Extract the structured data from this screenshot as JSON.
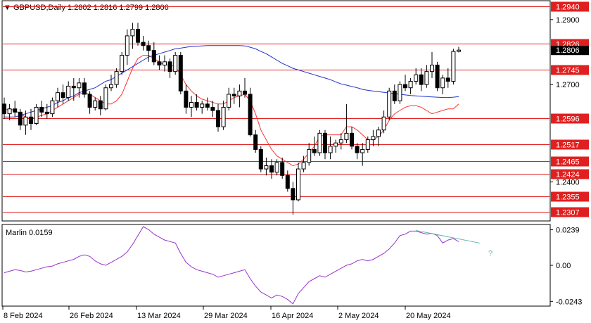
{
  "header": {
    "symbol_line": "GBPUSD,Daily  1.2802 1.2816 1.2799 1.2806",
    "marker": "▼"
  },
  "chart_data": [
    {
      "type": "candlestick",
      "symbol": "GBPUSD",
      "timeframe": "Daily",
      "ohlc_last": {
        "open": 1.2802,
        "high": 1.2816,
        "low": 1.2799,
        "close": 1.2806
      },
      "current_price_label": "1.2806",
      "y_ticks": [
        "1.2900",
        "1.2700",
        "1.2400"
      ],
      "x_ticks": [
        "8 Feb 2024",
        "26 Feb 2024",
        "13 Mar 2024",
        "29 Mar 2024",
        "16 Apr 2024",
        "2 May 2024",
        "20 May 2024"
      ],
      "horizontal_levels": [
        1.294,
        1.2826,
        1.2745,
        1.2596,
        1.2517,
        1.2465,
        1.2424,
        1.2355,
        1.2307
      ],
      "level_labels": [
        "1.2940",
        "1.2826",
        "1.2745",
        "1.2596",
        "1.2517",
        "1.2465",
        "1.2424",
        "1.2355",
        "1.2307"
      ],
      "candles": [
        [
          1.264,
          1.266,
          1.2595,
          1.261
        ],
        [
          1.261,
          1.264,
          1.259,
          1.2625
        ],
        [
          1.2625,
          1.265,
          1.26,
          1.2615
        ],
        [
          1.2615,
          1.2625,
          1.256,
          1.2575
        ],
        [
          1.2575,
          1.262,
          1.2545,
          1.26
        ],
        [
          1.26,
          1.2625,
          1.256,
          1.258
        ],
        [
          1.258,
          1.264,
          1.2575,
          1.263
        ],
        [
          1.263,
          1.265,
          1.26,
          1.2615
        ],
        [
          1.2615,
          1.264,
          1.2595,
          1.261
        ],
        [
          1.261,
          1.266,
          1.26,
          1.265
        ],
        [
          1.265,
          1.269,
          1.263,
          1.2675
        ],
        [
          1.2675,
          1.27,
          1.264,
          1.266
        ],
        [
          1.266,
          1.271,
          1.265,
          1.2695
        ],
        [
          1.2695,
          1.272,
          1.265,
          1.269
        ],
        [
          1.269,
          1.272,
          1.266,
          1.2705
        ],
        [
          1.2705,
          1.272,
          1.266,
          1.267
        ],
        [
          1.267,
          1.268,
          1.261,
          1.263
        ],
        [
          1.263,
          1.266,
          1.262,
          1.265
        ],
        [
          1.265,
          1.2665,
          1.2605,
          1.2625
        ],
        [
          1.2625,
          1.27,
          1.262,
          1.269
        ],
        [
          1.269,
          1.273,
          1.268,
          1.27
        ],
        [
          1.27,
          1.275,
          1.269,
          1.274
        ],
        [
          1.274,
          1.28,
          1.273,
          1.279
        ],
        [
          1.279,
          1.287,
          1.276,
          1.285
        ],
        [
          1.285,
          1.289,
          1.281,
          1.287
        ],
        [
          1.287,
          1.289,
          1.282,
          1.283
        ],
        [
          1.283,
          1.285,
          1.2805,
          1.282
        ],
        [
          1.282,
          1.2835,
          1.277,
          1.2805
        ],
        [
          1.2805,
          1.283,
          1.276,
          1.277
        ],
        [
          1.277,
          1.279,
          1.2745,
          1.276
        ],
        [
          1.276,
          1.279,
          1.274,
          1.277
        ],
        [
          1.277,
          1.278,
          1.272,
          1.274
        ],
        [
          1.274,
          1.28,
          1.273,
          1.279
        ],
        [
          1.279,
          1.28,
          1.267,
          1.268
        ],
        [
          1.268,
          1.27,
          1.261,
          1.263
        ],
        [
          1.263,
          1.2665,
          1.26,
          1.2645
        ],
        [
          1.2645,
          1.267,
          1.262,
          1.263
        ],
        [
          1.263,
          1.265,
          1.261,
          1.264
        ],
        [
          1.264,
          1.266,
          1.262,
          1.263
        ],
        [
          1.263,
          1.265,
          1.26,
          1.262
        ],
        [
          1.262,
          1.264,
          1.2555,
          1.257
        ],
        [
          1.257,
          1.265,
          1.256,
          1.263
        ],
        [
          1.263,
          1.269,
          1.262,
          1.267
        ],
        [
          1.267,
          1.269,
          1.264,
          1.2665
        ],
        [
          1.2665,
          1.27,
          1.263,
          1.268
        ],
        [
          1.268,
          1.272,
          1.266,
          1.267
        ],
        [
          1.267,
          1.269,
          1.254,
          1.2545
        ],
        [
          1.2545,
          1.256,
          1.249,
          1.25
        ],
        [
          1.25,
          1.251,
          1.243,
          1.244
        ],
        [
          1.244,
          1.2475,
          1.242,
          1.245
        ],
        [
          1.245,
          1.247,
          1.241,
          1.243
        ],
        [
          1.243,
          1.247,
          1.242,
          1.246
        ],
        [
          1.246,
          1.2475,
          1.241,
          1.242
        ],
        [
          1.242,
          1.2435,
          1.237,
          1.238
        ],
        [
          1.238,
          1.24,
          1.2299,
          1.2345
        ],
        [
          1.2345,
          1.246,
          1.234,
          1.244
        ],
        [
          1.244,
          1.248,
          1.243,
          1.246
        ],
        [
          1.246,
          1.252,
          1.245,
          1.25
        ],
        [
          1.25,
          1.254,
          1.248,
          1.249
        ],
        [
          1.249,
          1.256,
          1.248,
          1.255
        ],
        [
          1.255,
          1.256,
          1.247,
          1.249
        ],
        [
          1.249,
          1.254,
          1.247,
          1.251
        ],
        [
          1.251,
          1.253,
          1.249,
          1.252
        ],
        [
          1.252,
          1.255,
          1.25,
          1.253
        ],
        [
          1.253,
          1.264,
          1.252,
          1.255
        ],
        [
          1.255,
          1.257,
          1.25,
          1.251
        ],
        [
          1.251,
          1.252,
          1.247,
          1.249
        ],
        [
          1.249,
          1.252,
          1.245,
          1.25
        ],
        [
          1.25,
          1.254,
          1.249,
          1.253
        ],
        [
          1.253,
          1.256,
          1.251,
          1.254
        ],
        [
          1.254,
          1.257,
          1.251,
          1.256
        ],
        [
          1.256,
          1.262,
          1.255,
          1.26
        ],
        [
          1.26,
          1.269,
          1.259,
          1.268
        ],
        [
          1.268,
          1.27,
          1.264,
          1.265
        ],
        [
          1.265,
          1.271,
          1.264,
          1.27
        ],
        [
          1.27,
          1.273,
          1.268,
          1.269
        ],
        [
          1.269,
          1.272,
          1.267,
          1.271
        ],
        [
          1.271,
          1.275,
          1.27,
          1.273
        ],
        [
          1.273,
          1.275,
          1.268,
          1.27
        ],
        [
          1.27,
          1.276,
          1.269,
          1.274
        ],
        [
          1.274,
          1.28,
          1.272,
          1.276
        ],
        [
          1.276,
          1.277,
          1.268,
          1.269
        ],
        [
          1.269,
          1.273,
          1.267,
          1.272
        ],
        [
          1.272,
          1.275,
          1.269,
          1.271
        ],
        [
          1.271,
          1.281,
          1.27,
          1.2802
        ],
        [
          1.2802,
          1.2816,
          1.2799,
          1.2806
        ]
      ],
      "red_ma": [
        1.262,
        1.2625,
        1.262,
        1.261,
        1.26,
        1.2595,
        1.26,
        1.2605,
        1.261,
        1.262,
        1.263,
        1.264,
        1.265,
        1.266,
        1.267,
        1.2675,
        1.267,
        1.266,
        1.265,
        1.264,
        1.264,
        1.265,
        1.267,
        1.271,
        1.275,
        1.278,
        1.279,
        1.279,
        1.278,
        1.277,
        1.276,
        1.276,
        1.2755,
        1.273,
        1.27,
        1.268,
        1.2665,
        1.2655,
        1.265,
        1.2645,
        1.264,
        1.264,
        1.265,
        1.266,
        1.2665,
        1.267,
        1.265,
        1.261,
        1.256,
        1.253,
        1.25,
        1.248,
        1.247,
        1.246,
        1.245,
        1.2455,
        1.247,
        1.249,
        1.251,
        1.254,
        1.2545,
        1.2545,
        1.2545,
        1.2545,
        1.257,
        1.257,
        1.256,
        1.2545,
        1.253,
        1.253,
        1.254,
        1.256,
        1.259,
        1.261,
        1.262,
        1.263,
        1.2635,
        1.2635,
        1.263,
        1.262,
        1.261,
        1.2615,
        1.262,
        1.2625,
        1.2625,
        1.264
      ],
      "blue_ma": [
        1.26,
        1.26,
        1.26,
        1.2605,
        1.261,
        1.2615,
        1.262,
        1.2625,
        1.263,
        1.2635,
        1.2645,
        1.265,
        1.266,
        1.2665,
        1.2675,
        1.268,
        1.2685,
        1.269,
        1.27,
        1.271,
        1.2715,
        1.2725,
        1.2735,
        1.2745,
        1.2755,
        1.2765,
        1.2775,
        1.2785,
        1.279,
        1.2795,
        1.28,
        1.2805,
        1.281,
        1.2812,
        1.2815,
        1.2817,
        1.2818,
        1.2819,
        1.282,
        1.282,
        1.282,
        1.282,
        1.282,
        1.282,
        1.282,
        1.2819,
        1.2815,
        1.281,
        1.2802,
        1.2795,
        1.2785,
        1.2775,
        1.2765,
        1.2758,
        1.275,
        1.2745,
        1.274,
        1.2735,
        1.273,
        1.2725,
        1.272,
        1.2715,
        1.2708,
        1.2702,
        1.2698,
        1.2694,
        1.269,
        1.2685,
        1.2682,
        1.268,
        1.2678,
        1.2676,
        1.2674,
        1.2672,
        1.267,
        1.2668,
        1.2666,
        1.2665,
        1.2664,
        1.2663,
        1.2662,
        1.2661,
        1.266,
        1.266,
        1.2661,
        1.2663
      ]
    },
    {
      "type": "line",
      "indicator": "Marlin",
      "label": "Marlin 0.0159",
      "y_ticks": [
        "0.0239",
        "0.00",
        "-0.0243"
      ],
      "ylim": [
        -0.027,
        0.027
      ],
      "values": [
        -0.005,
        -0.004,
        -0.003,
        -0.0035,
        -0.0045,
        -0.004,
        -0.003,
        -0.002,
        -0.001,
        -0.0005,
        0.001,
        0.002,
        0.003,
        0.004,
        0.006,
        0.007,
        0.006,
        0.003,
        0.001,
        0.0,
        0.002,
        0.004,
        0.006,
        0.009,
        0.014,
        0.02,
        0.026,
        0.024,
        0.021,
        0.019,
        0.017,
        0.016,
        0.015,
        0.008,
        0.002,
        -0.001,
        -0.003,
        -0.004,
        -0.005,
        -0.006,
        -0.008,
        -0.007,
        -0.006,
        -0.005,
        -0.004,
        -0.003,
        -0.009,
        -0.014,
        -0.018,
        -0.02,
        -0.022,
        -0.02,
        -0.021,
        -0.023,
        -0.026,
        -0.019,
        -0.015,
        -0.011,
        -0.009,
        -0.007,
        -0.008,
        -0.006,
        -0.004,
        -0.002,
        0.0,
        0.001,
        0.003,
        0.004,
        0.003,
        0.004,
        0.006,
        0.008,
        0.011,
        0.015,
        0.02,
        0.021,
        0.023,
        0.023,
        0.022,
        0.021,
        0.0215,
        0.02,
        0.015,
        0.017,
        0.018,
        0.0159
      ],
      "divergence_annotation": "?"
    }
  ],
  "colors": {
    "candle_body_up": "#ffffff",
    "candle_body_down": "#000000",
    "level_line": "#e02020",
    "red_ma": "#ff3333",
    "blue_ma": "#2233cc",
    "marlin_line": "#9933cc",
    "divergence_line": "#66b2aa"
  }
}
